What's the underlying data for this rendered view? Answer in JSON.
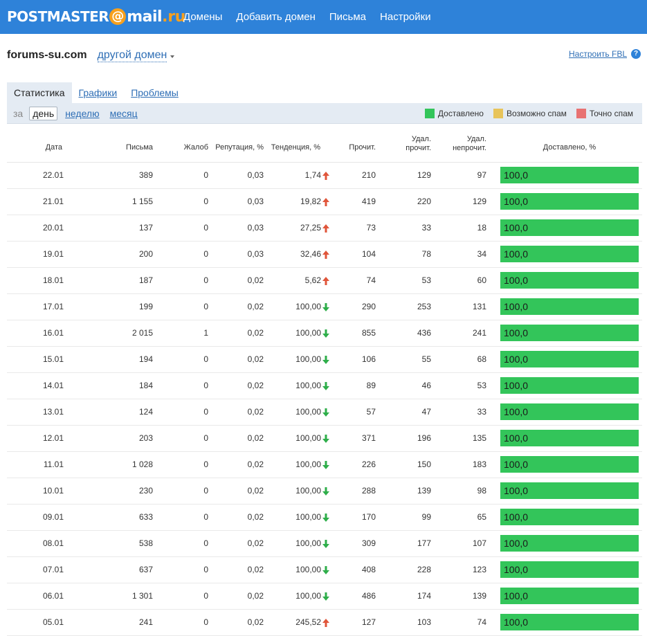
{
  "header": {
    "logo": {
      "part1": "POSTMASTER",
      "at": "@",
      "part2": "mail",
      "dot": ".",
      "part3": "ru"
    },
    "nav": [
      "Домены",
      "Добавить домен",
      "Письма",
      "Настройки"
    ]
  },
  "domain": {
    "name": "forums-su.com",
    "switch_label": "другой домен"
  },
  "fbl": {
    "label": "Настроить FBL",
    "help": "?"
  },
  "tabs": [
    "Статистика",
    "Графики",
    "Проблемы"
  ],
  "filter": {
    "prefix": "за",
    "periods": [
      "день",
      "неделю",
      "месяц"
    ]
  },
  "legend": [
    {
      "label": "Доставлено",
      "color": "#33c55a"
    },
    {
      "label": "Возможно спам",
      "color": "#e8c45a"
    },
    {
      "label": "Точно спам",
      "color": "#e87272"
    }
  ],
  "table": {
    "headers": {
      "date": "Дата",
      "letters": "Письма",
      "complaints": "Жалоб",
      "reputation": "Репутация, %",
      "trend": "Тенденция, %",
      "read": "Прочит.",
      "del_read_1": "Удал.",
      "del_read_2": "прочит.",
      "del_unread_1": "Удал.",
      "del_unread_2": "непрочит.",
      "delivered": "Доставлено, %"
    },
    "rows": [
      {
        "date": "22.01",
        "letters": "389",
        "complaints": "0",
        "reputation": "0,03",
        "trend": "1,74",
        "dir": "up",
        "read": "210",
        "del_read": "129",
        "del_unread": "97",
        "delivered": "100,0"
      },
      {
        "date": "21.01",
        "letters": "1 155",
        "complaints": "0",
        "reputation": "0,03",
        "trend": "19,82",
        "dir": "up",
        "read": "419",
        "del_read": "220",
        "del_unread": "129",
        "delivered": "100,0"
      },
      {
        "date": "20.01",
        "letters": "137",
        "complaints": "0",
        "reputation": "0,03",
        "trend": "27,25",
        "dir": "up",
        "read": "73",
        "del_read": "33",
        "del_unread": "18",
        "delivered": "100,0"
      },
      {
        "date": "19.01",
        "letters": "200",
        "complaints": "0",
        "reputation": "0,03",
        "trend": "32,46",
        "dir": "up",
        "read": "104",
        "del_read": "78",
        "del_unread": "34",
        "delivered": "100,0"
      },
      {
        "date": "18.01",
        "letters": "187",
        "complaints": "0",
        "reputation": "0,02",
        "trend": "5,62",
        "dir": "up",
        "read": "74",
        "del_read": "53",
        "del_unread": "60",
        "delivered": "100,0"
      },
      {
        "date": "17.01",
        "letters": "199",
        "complaints": "0",
        "reputation": "0,02",
        "trend": "100,00",
        "dir": "down",
        "read": "290",
        "del_read": "253",
        "del_unread": "131",
        "delivered": "100,0"
      },
      {
        "date": "16.01",
        "letters": "2 015",
        "complaints": "1",
        "reputation": "0,02",
        "trend": "100,00",
        "dir": "down",
        "read": "855",
        "del_read": "436",
        "del_unread": "241",
        "delivered": "100,0"
      },
      {
        "date": "15.01",
        "letters": "194",
        "complaints": "0",
        "reputation": "0,02",
        "trend": "100,00",
        "dir": "down",
        "read": "106",
        "del_read": "55",
        "del_unread": "68",
        "delivered": "100,0"
      },
      {
        "date": "14.01",
        "letters": "184",
        "complaints": "0",
        "reputation": "0,02",
        "trend": "100,00",
        "dir": "down",
        "read": "89",
        "del_read": "46",
        "del_unread": "53",
        "delivered": "100,0"
      },
      {
        "date": "13.01",
        "letters": "124",
        "complaints": "0",
        "reputation": "0,02",
        "trend": "100,00",
        "dir": "down",
        "read": "57",
        "del_read": "47",
        "del_unread": "33",
        "delivered": "100,0"
      },
      {
        "date": "12.01",
        "letters": "203",
        "complaints": "0",
        "reputation": "0,02",
        "trend": "100,00",
        "dir": "down",
        "read": "371",
        "del_read": "196",
        "del_unread": "135",
        "delivered": "100,0"
      },
      {
        "date": "11.01",
        "letters": "1 028",
        "complaints": "0",
        "reputation": "0,02",
        "trend": "100,00",
        "dir": "down",
        "read": "226",
        "del_read": "150",
        "del_unread": "183",
        "delivered": "100,0"
      },
      {
        "date": "10.01",
        "letters": "230",
        "complaints": "0",
        "reputation": "0,02",
        "trend": "100,00",
        "dir": "down",
        "read": "288",
        "del_read": "139",
        "del_unread": "98",
        "delivered": "100,0"
      },
      {
        "date": "09.01",
        "letters": "633",
        "complaints": "0",
        "reputation": "0,02",
        "trend": "100,00",
        "dir": "down",
        "read": "170",
        "del_read": "99",
        "del_unread": "65",
        "delivered": "100,0"
      },
      {
        "date": "08.01",
        "letters": "538",
        "complaints": "0",
        "reputation": "0,02",
        "trend": "100,00",
        "dir": "down",
        "read": "309",
        "del_read": "177",
        "del_unread": "107",
        "delivered": "100,0"
      },
      {
        "date": "07.01",
        "letters": "637",
        "complaints": "0",
        "reputation": "0,02",
        "trend": "100,00",
        "dir": "down",
        "read": "408",
        "del_read": "228",
        "del_unread": "123",
        "delivered": "100,0"
      },
      {
        "date": "06.01",
        "letters": "1 301",
        "complaints": "0",
        "reputation": "0,02",
        "trend": "100,00",
        "dir": "down",
        "read": "486",
        "del_read": "174",
        "del_unread": "139",
        "delivered": "100,0"
      },
      {
        "date": "05.01",
        "letters": "241",
        "complaints": "0",
        "reputation": "0,02",
        "trend": "245,52",
        "dir": "up",
        "read": "127",
        "del_read": "103",
        "del_unread": "74",
        "delivered": "100,0"
      }
    ]
  },
  "colors": {
    "header_bg": "#2e82d9",
    "accent_orange": "#f7a01d",
    "delivered": "#33c55a",
    "trend_up": "#e0553a",
    "trend_down": "#2eae4a"
  }
}
